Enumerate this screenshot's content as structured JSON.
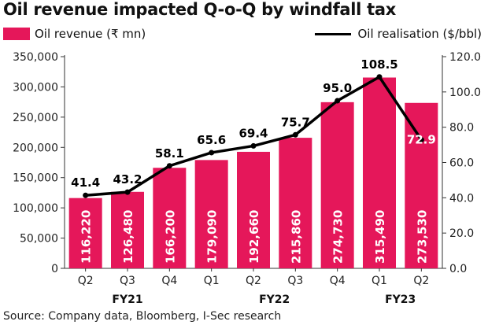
{
  "title": "Oil revenue impacted Q-o-Q by windfall tax",
  "source": "Source: Company data, Bloomberg, I-Sec research",
  "chart_data": {
    "type": "bar+line",
    "categories": [
      "Q2",
      "Q3",
      "Q4",
      "Q1",
      "Q2",
      "Q3",
      "Q4",
      "Q1",
      "Q2"
    ],
    "category_groups": [
      {
        "label": "FY21",
        "start": 0,
        "end": 2
      },
      {
        "label": "FY22",
        "start": 3,
        "end": 6
      },
      {
        "label": "FY23",
        "start": 7,
        "end": 8
      }
    ],
    "series": [
      {
        "name": "Oil revenue (₹ mn)",
        "type": "bar",
        "axis": "left",
        "values": [
          116220,
          126480,
          166200,
          179090,
          192660,
          215860,
          274730,
          315490,
          273530
        ],
        "labels": [
          "116,220",
          "126,480",
          "166,200",
          "179,090",
          "192,660",
          "215,860",
          "274,730",
          "315,490",
          "273,530"
        ]
      },
      {
        "name": "Oil realisation ($/bbl)",
        "type": "line",
        "axis": "right",
        "values": [
          41.4,
          43.2,
          58.1,
          65.6,
          69.4,
          75.7,
          95.0,
          108.5,
          72.9
        ],
        "labels": [
          "41.4",
          "43.2",
          "58.1",
          "65.6",
          "69.4",
          "75.7",
          "95.0",
          "108.5",
          "72.9"
        ]
      }
    ],
    "y_left": {
      "min": 0,
      "max": 350000,
      "ticks": [
        "0",
        "50,000",
        "100,000",
        "150,000",
        "200,000",
        "250,000",
        "300,000",
        "350,000"
      ]
    },
    "y_right": {
      "min": 0,
      "max": 120,
      "ticks": [
        "0.0",
        "20.0",
        "40.0",
        "60.0",
        "80.0",
        "100.0",
        "120.0"
      ]
    },
    "grid": false,
    "legend": "top",
    "colors": {
      "bar": "#e5175a",
      "line": "#000000"
    }
  }
}
